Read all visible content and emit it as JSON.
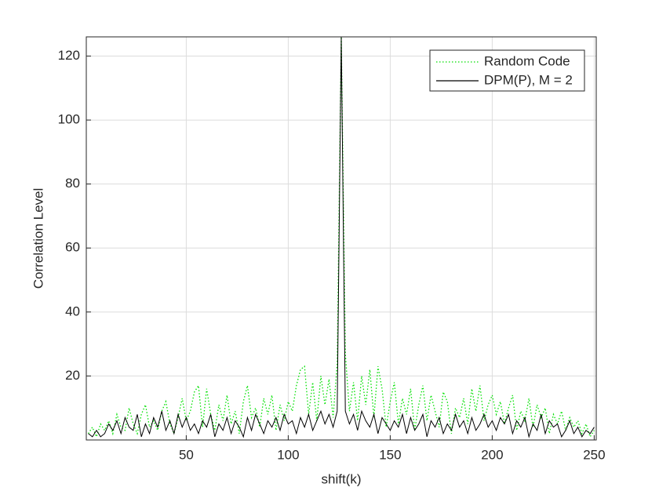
{
  "chart_data": {
    "type": "line",
    "xlabel": "shift(k)",
    "ylabel": "Correlation Level",
    "x": [
      2,
      4,
      6,
      8,
      10,
      12,
      14,
      16,
      18,
      20,
      22,
      24,
      26,
      28,
      30,
      32,
      34,
      36,
      38,
      40,
      42,
      44,
      46,
      48,
      50,
      52,
      54,
      56,
      58,
      60,
      62,
      64,
      66,
      68,
      70,
      72,
      74,
      76,
      78,
      80,
      82,
      84,
      86,
      88,
      90,
      92,
      94,
      96,
      98,
      100,
      102,
      104,
      106,
      108,
      110,
      112,
      114,
      116,
      118,
      120,
      122,
      124,
      126,
      128,
      130,
      132,
      134,
      136,
      138,
      140,
      142,
      144,
      146,
      148,
      150,
      152,
      154,
      156,
      158,
      160,
      162,
      164,
      166,
      168,
      170,
      172,
      174,
      176,
      178,
      180,
      182,
      184,
      186,
      188,
      190,
      192,
      194,
      196,
      198,
      200,
      202,
      204,
      206,
      208,
      210,
      212,
      214,
      216,
      218,
      220,
      222,
      224,
      226,
      228,
      230,
      232,
      234,
      236,
      238,
      240,
      242,
      244,
      246,
      248,
      250
    ],
    "series": [
      {
        "name": "Random Code",
        "color": "#00e000",
        "style": "dotted",
        "values": [
          2,
          4,
          1,
          5,
          3,
          6,
          2,
          8,
          4,
          3,
          10,
          5,
          2,
          8,
          11,
          4,
          6,
          3,
          9,
          12,
          5,
          2,
          7,
          13,
          6,
          9,
          15,
          17,
          4,
          16,
          8,
          3,
          11,
          6,
          14,
          5,
          9,
          2,
          12,
          17,
          7,
          10,
          4,
          13,
          8,
          14,
          3,
          11,
          6,
          12,
          9,
          17,
          22,
          23,
          8,
          18,
          6,
          20,
          11,
          19,
          7,
          24,
          126,
          27,
          9,
          18,
          6,
          20,
          11,
          22,
          7,
          23,
          16,
          4,
          12,
          18,
          5,
          13,
          8,
          16,
          3,
          11,
          17,
          6,
          14,
          9,
          4,
          15,
          12,
          2,
          10,
          7,
          13,
          5,
          16,
          9,
          17,
          6,
          11,
          14,
          8,
          12,
          5,
          10,
          14,
          3,
          9,
          6,
          13,
          4,
          11,
          7,
          10,
          2,
          8,
          5,
          9,
          3,
          7,
          4,
          6,
          2,
          5,
          1,
          3
        ]
      },
      {
        "name": "DPM(P), M = 2",
        "color": "#000000",
        "style": "solid",
        "values": [
          2,
          1,
          3,
          1,
          2,
          5,
          3,
          6,
          2,
          7,
          4,
          3,
          8,
          1,
          5,
          2,
          7,
          4,
          9,
          3,
          6,
          2,
          8,
          4,
          7,
          3,
          5,
          2,
          6,
          4,
          8,
          1,
          5,
          3,
          7,
          2,
          6,
          4,
          1,
          7,
          3,
          8,
          5,
          2,
          6,
          4,
          7,
          3,
          8,
          5,
          6,
          2,
          7,
          4,
          8,
          3,
          6,
          9,
          5,
          8,
          4,
          9,
          126,
          9,
          5,
          8,
          3,
          9,
          6,
          4,
          8,
          2,
          7,
          5,
          3,
          6,
          4,
          8,
          2,
          7,
          3,
          5,
          8,
          1,
          6,
          4,
          7,
          2,
          5,
          3,
          8,
          4,
          6,
          2,
          7,
          3,
          5,
          8,
          4,
          6,
          3,
          7,
          5,
          8,
          2,
          6,
          4,
          7,
          1,
          5,
          3,
          8,
          2,
          6,
          4,
          5,
          1,
          3,
          6,
          2,
          4,
          1,
          3,
          2,
          4
        ]
      }
    ],
    "xlim": [
      1,
      251
    ],
    "ylim": [
      0,
      126
    ],
    "xticks": [
      50,
      100,
      150,
      200,
      250
    ],
    "yticks": [
      20,
      40,
      60,
      80,
      100,
      120
    ],
    "grid": true,
    "legend": "top-right"
  }
}
